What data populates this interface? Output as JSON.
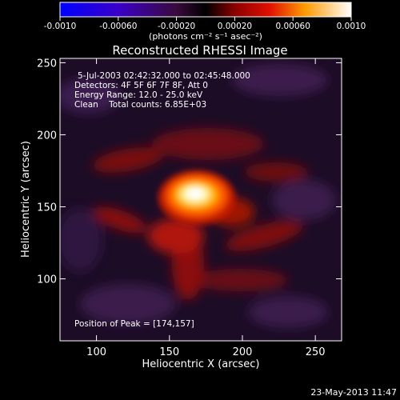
{
  "colorbar": {
    "ticks": [
      "-0.0010",
      "-0.00060",
      "-0.00020",
      "0.00020",
      "0.00060",
      "0.0010"
    ],
    "unit_label": "(photons cm⁻² s⁻¹ asec⁻²)"
  },
  "image": {
    "title": "Reconstructed RHESSI Image",
    "info": [
      "5-Jul-2003 02:42:32.000 to 02:45:48.000",
      "Detectors: 4F 5F 6F 7F 8F, Att 0",
      "Energy Range: 12.0 - 25.0 keV",
      "Clean    Total counts: 6.85E+03"
    ],
    "peak_text": "Position of Peak = [174,157]",
    "peak": {
      "x": 174,
      "y": 157
    }
  },
  "axes": {
    "xlabel": "Heliocentric X (arcsec)",
    "ylabel": "Heliocentric Y (arcsec)",
    "x_ticks": [
      "100",
      "150",
      "200",
      "250"
    ],
    "y_ticks": [
      "100",
      "150",
      "200",
      "250"
    ],
    "xlim": [
      75,
      268
    ],
    "ylim": [
      57,
      253
    ]
  },
  "footer": {
    "timestamp": "23-May-2013 11:47"
  },
  "colors": {
    "background": "#000000",
    "text": "#ffffff"
  }
}
